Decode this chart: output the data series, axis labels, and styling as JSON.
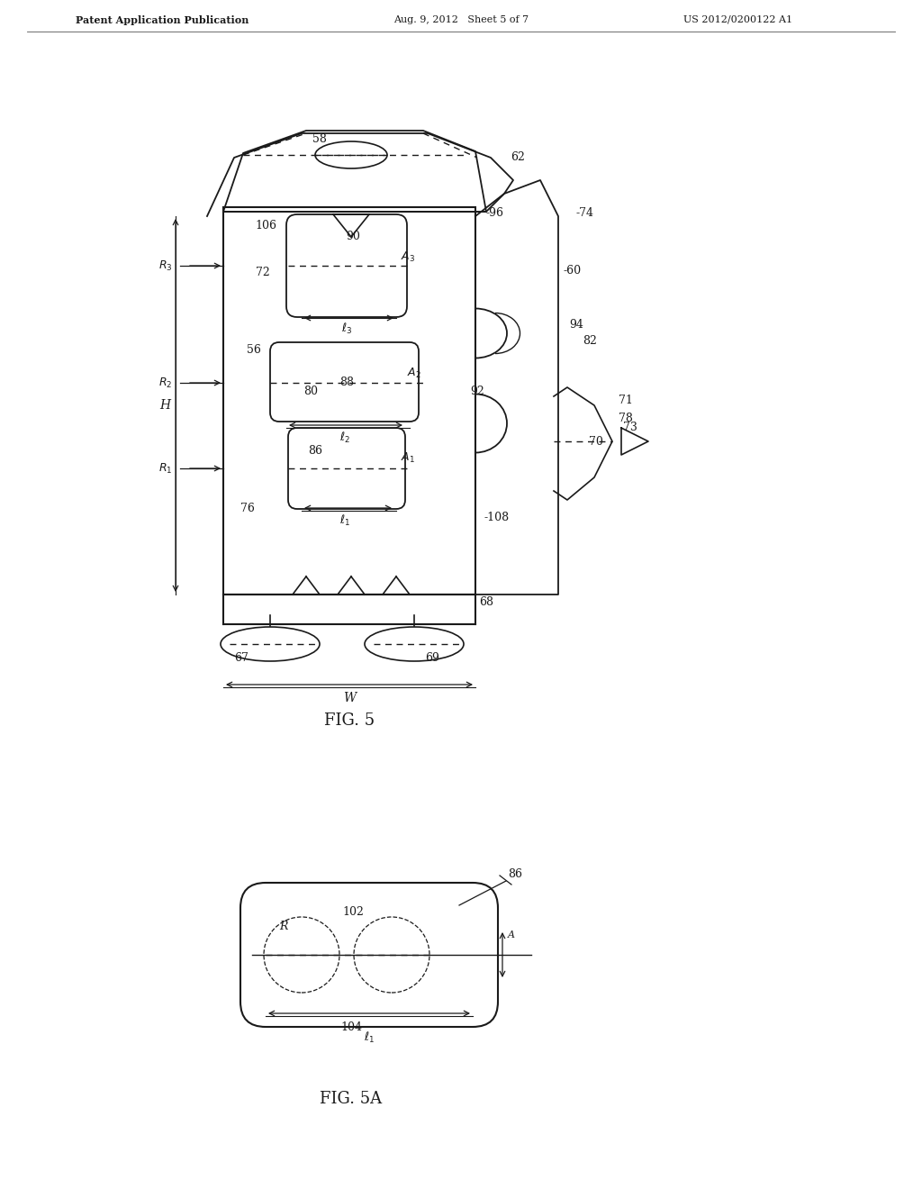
{
  "bg_color": "#ffffff",
  "line_color": "#1a1a1a",
  "fig_width": 10.24,
  "fig_height": 13.2,
  "header_left": "Patent Application Publication",
  "header_mid": "Aug. 9, 2012   Sheet 5 of 7",
  "header_right": "US 2012/0200122 A1",
  "fig5_label": "FIG. 5",
  "fig5a_label": "FIG. 5A"
}
